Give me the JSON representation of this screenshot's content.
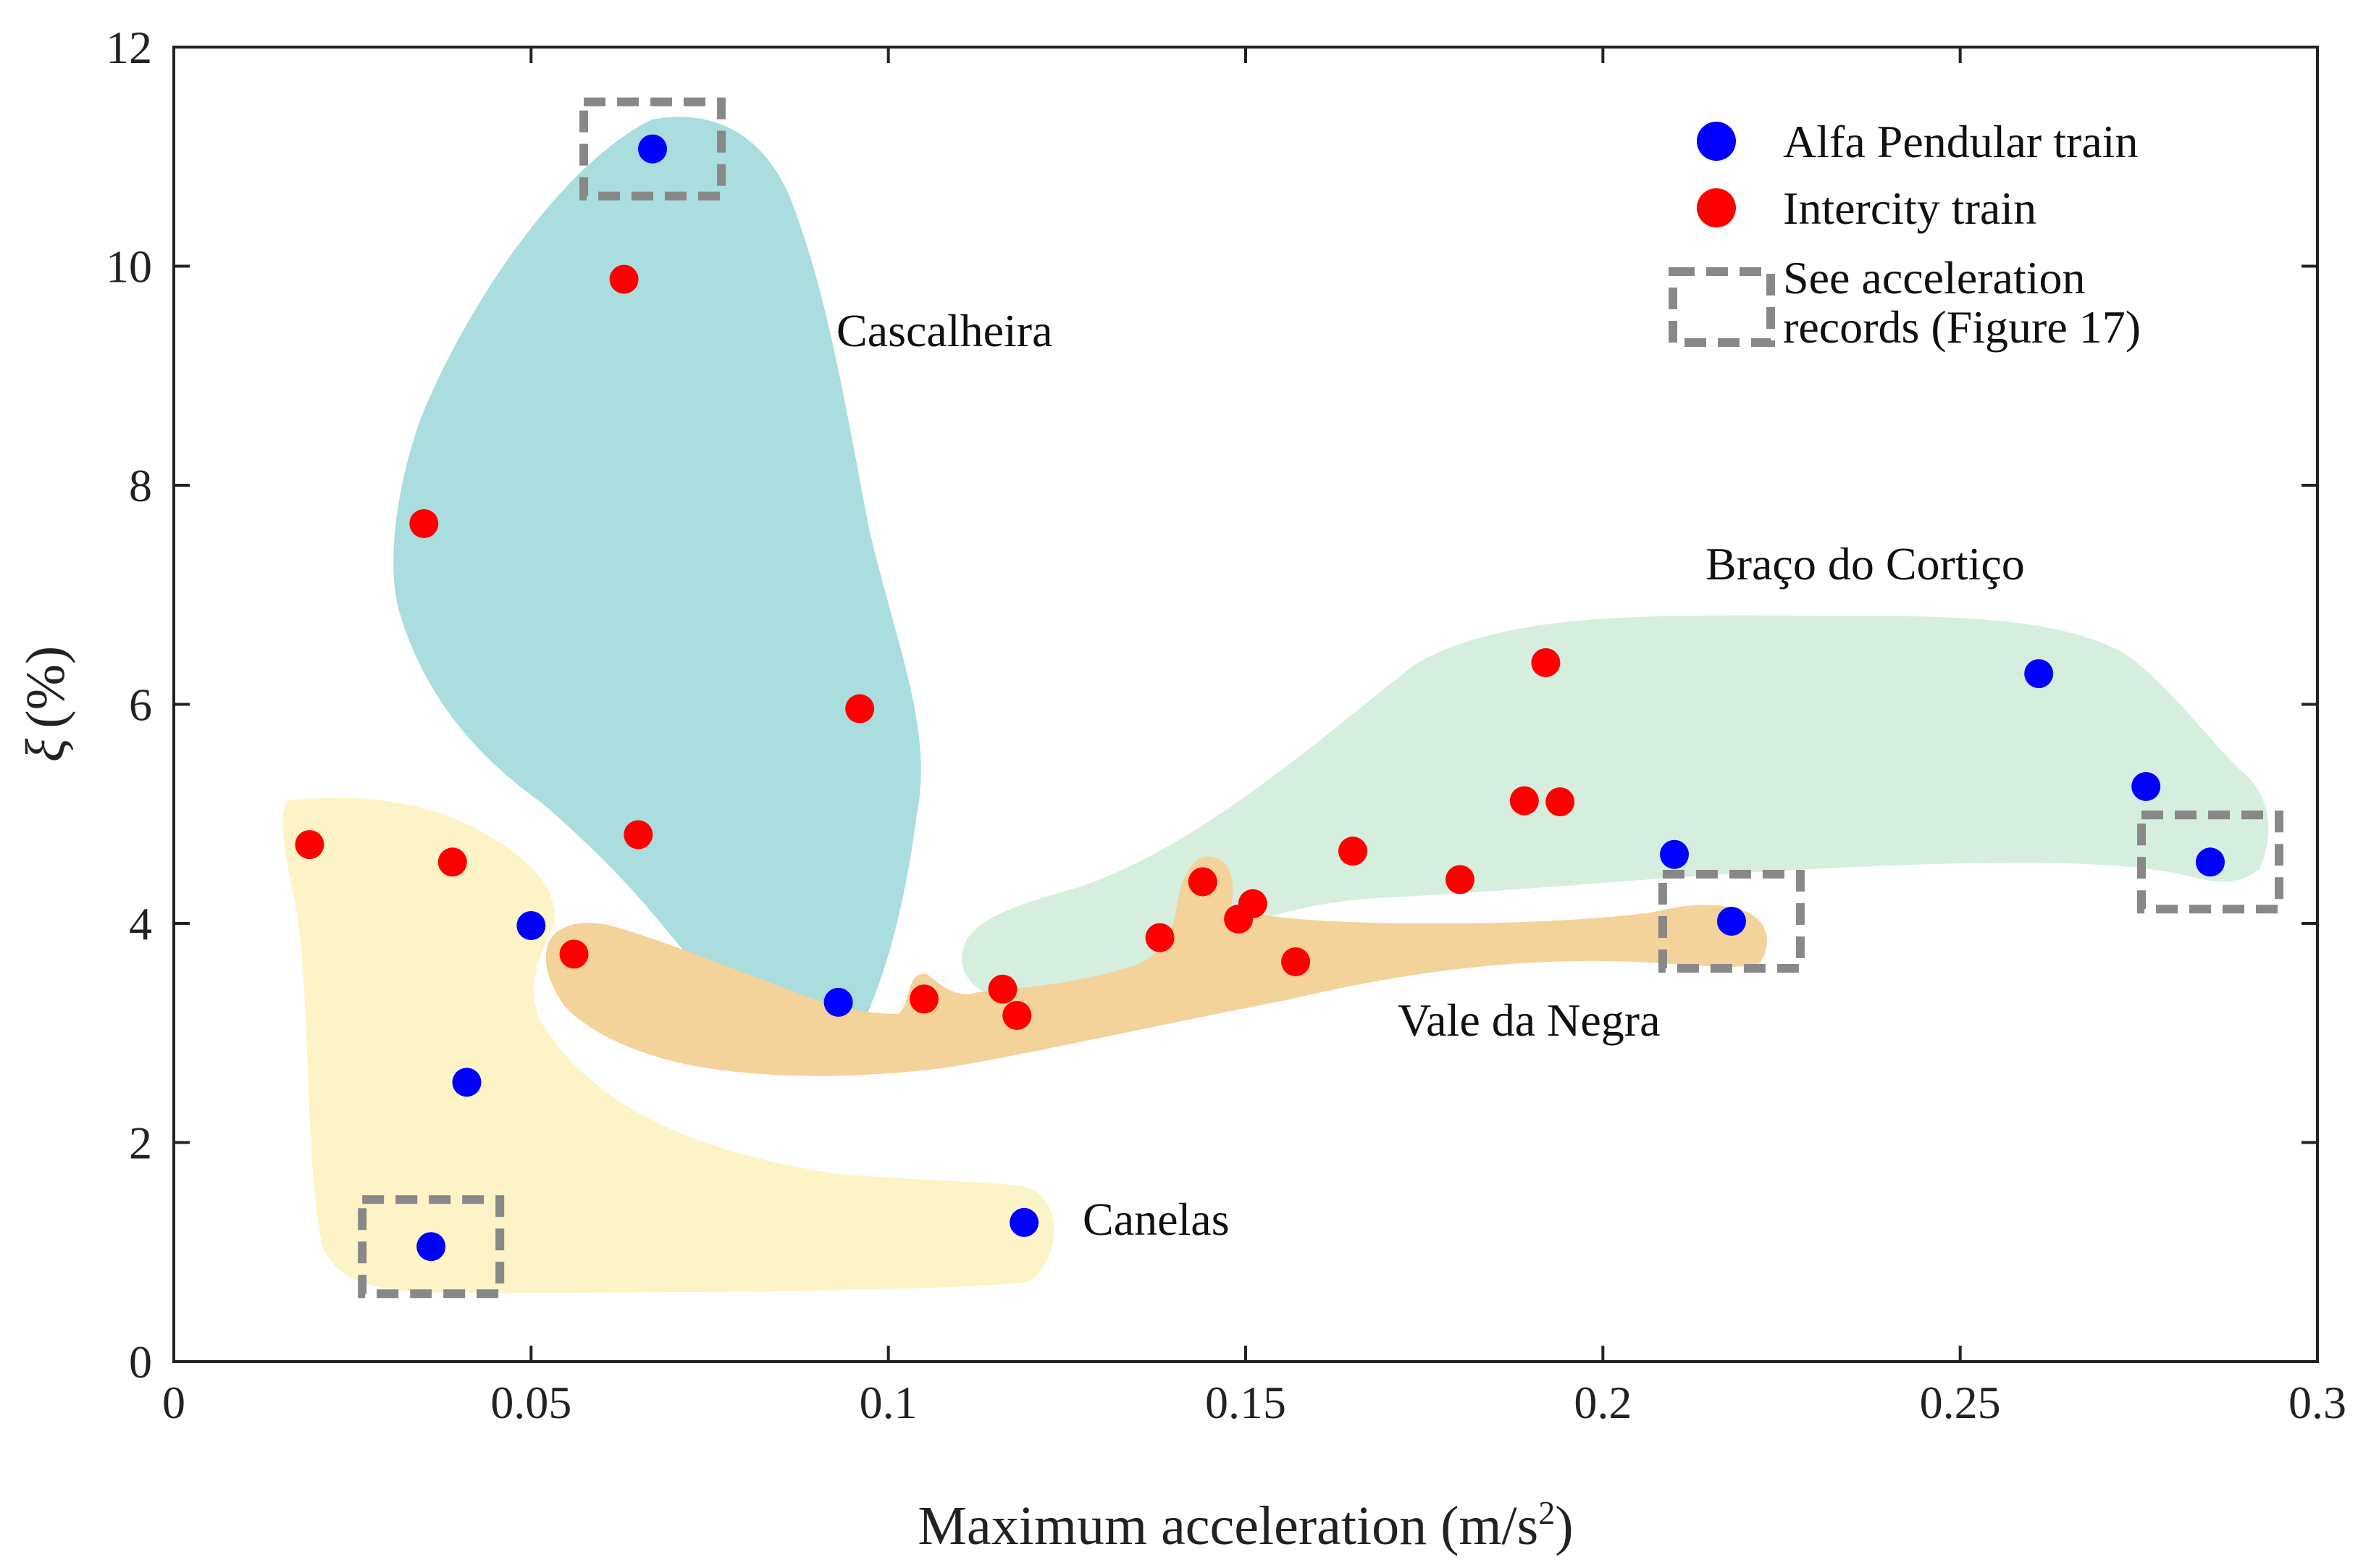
{
  "chart_data": {
    "type": "scatter",
    "xlabel": "Maximum acceleration (m/s",
    "xlabel_sup": "2",
    "xlabel_end": ")",
    "ylabel_symbol": "ξ",
    "ylabel_unit": "(%)",
    "xlim": [
      0,
      0.3
    ],
    "ylim": [
      0,
      12
    ],
    "xticks": [
      0,
      0.05,
      0.1,
      0.15,
      0.2,
      0.25,
      0.3
    ],
    "xtick_labels": [
      "0",
      "0.05",
      "0.1",
      "0.15",
      "0.2",
      "0.25",
      "0.3"
    ],
    "yticks": [
      0,
      2,
      4,
      6,
      8,
      10,
      12
    ],
    "ytick_labels": [
      "0",
      "2",
      "4",
      "6",
      "8",
      "10",
      "12"
    ],
    "grid": false,
    "legend_position": "top-right",
    "series": [
      {
        "name": "Alfa Pendular train",
        "color": "#0000ff",
        "points": [
          {
            "x": 0.067,
            "y": 11.07
          },
          {
            "x": 0.093,
            "y": 3.28
          },
          {
            "x": 0.05,
            "y": 3.98
          },
          {
            "x": 0.041,
            "y": 2.55
          },
          {
            "x": 0.036,
            "y": 1.05
          },
          {
            "x": 0.119,
            "y": 1.27
          },
          {
            "x": 0.21,
            "y": 4.63
          },
          {
            "x": 0.218,
            "y": 4.02
          },
          {
            "x": 0.261,
            "y": 6.28
          },
          {
            "x": 0.276,
            "y": 5.25
          },
          {
            "x": 0.285,
            "y": 4.56
          }
        ]
      },
      {
        "name": "Intercity train",
        "color": "#ff0000",
        "points": [
          {
            "x": 0.063,
            "y": 9.88
          },
          {
            "x": 0.035,
            "y": 7.65
          },
          {
            "x": 0.096,
            "y": 5.96
          },
          {
            "x": 0.065,
            "y": 4.81
          },
          {
            "x": 0.019,
            "y": 4.72
          },
          {
            "x": 0.039,
            "y": 4.56
          },
          {
            "x": 0.056,
            "y": 3.72
          },
          {
            "x": 0.105,
            "y": 3.31
          },
          {
            "x": 0.116,
            "y": 3.4
          },
          {
            "x": 0.118,
            "y": 3.16
          },
          {
            "x": 0.138,
            "y": 3.87
          },
          {
            "x": 0.144,
            "y": 4.38
          },
          {
            "x": 0.149,
            "y": 4.04
          },
          {
            "x": 0.151,
            "y": 4.18
          },
          {
            "x": 0.157,
            "y": 3.65
          },
          {
            "x": 0.165,
            "y": 4.66
          },
          {
            "x": 0.18,
            "y": 4.4
          },
          {
            "x": 0.189,
            "y": 5.12
          },
          {
            "x": 0.192,
            "y": 6.38
          },
          {
            "x": 0.194,
            "y": 5.11
          }
        ]
      }
    ],
    "regions": [
      {
        "name": "Cascalheira",
        "color": "#aadddd"
      },
      {
        "name": "Braço do Cortiço",
        "color": "#d5eedd"
      },
      {
        "name": "Vale da Negra",
        "color": "#f3d39a"
      },
      {
        "name": "Canelas",
        "color": "#fcf4c6"
      }
    ],
    "highlight_boxes_legend": "See acceleration records (Figure 17)",
    "highlight_boxes_legend_lines": [
      "See acceleration",
      "records (Figure 17)"
    ],
    "highlight_box_color": "#888888",
    "highlighted_points": [
      {
        "x": 0.067,
        "y": 11.07
      },
      {
        "x": 0.036,
        "y": 1.05
      },
      {
        "x": 0.218,
        "y": 4.02
      },
      {
        "x": 0.285,
        "y": 4.56
      }
    ]
  }
}
